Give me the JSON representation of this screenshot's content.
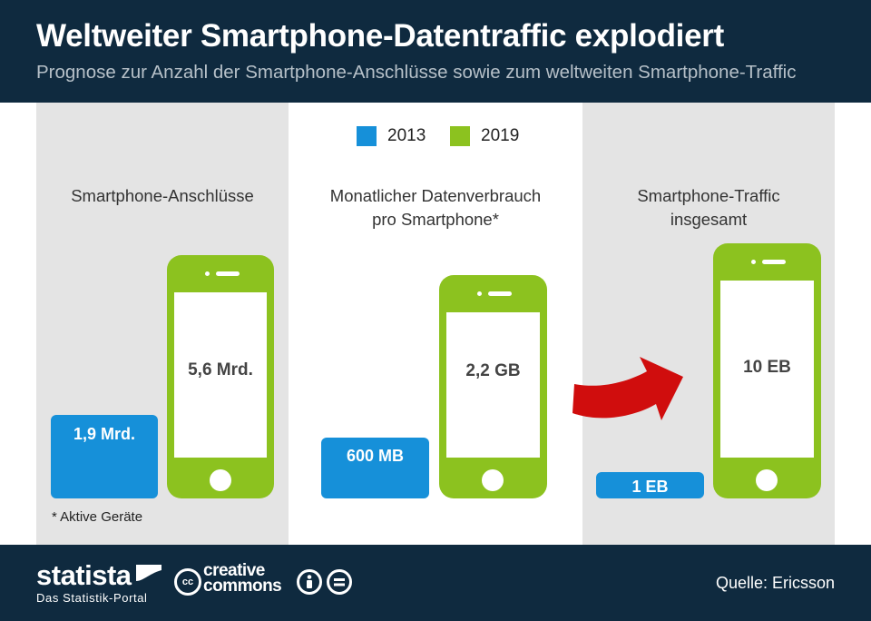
{
  "header": {
    "title": "Weltweiter Smartphone-Datentraffic explodiert",
    "subtitle": "Prognose zur Anzahl der Smartphone-Anschlüsse sowie zum weltweiten Smartphone-Traffic"
  },
  "legend": [
    {
      "label": "2013",
      "color": "#1690d9"
    },
    {
      "label": "2019",
      "color": "#8cc21f"
    }
  ],
  "categories": [
    {
      "title": "Smartphone-Anschlüsse"
    },
    {
      "title_line1": "Monatlicher Datenverbrauch",
      "title_line2": "pro Smartphone*"
    },
    {
      "title_line1": "Smartphone-Traffic",
      "title_line2": "insgesamt"
    }
  ],
  "footnote": "* Aktive Geräte",
  "footer": {
    "brand": "statista",
    "brand_sub": "Das Statistik-Portal",
    "cc_text_line1": "creative",
    "cc_text_line2": "commons",
    "source": "Quelle: Ericsson"
  },
  "chart_data": {
    "type": "bar",
    "categories": [
      "Smartphone-Anschlüsse",
      "Monatlicher Datenverbrauch pro Smartphone*",
      "Smartphone-Traffic insgesamt"
    ],
    "series": [
      {
        "name": "2013",
        "values": [
          1.9,
          0.6,
          1
        ],
        "labels": [
          "1,9 Mrd.",
          "600 MB",
          "1 EB"
        ],
        "color": "#1690d9"
      },
      {
        "name": "2019",
        "values": [
          5.6,
          2.2,
          10
        ],
        "labels": [
          "5,6 Mrd.",
          "2,2 GB",
          "10 EB"
        ],
        "color": "#8cc21f"
      }
    ]
  }
}
